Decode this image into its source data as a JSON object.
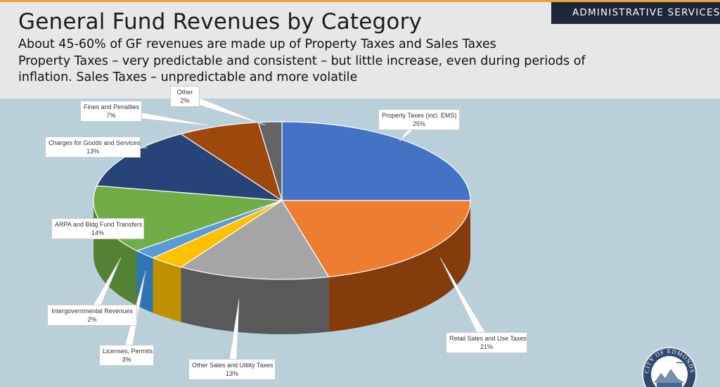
{
  "header": {
    "title": "General Fund Revenues by Category",
    "line1": "About 45-60% of GF revenues are made up of Property Taxes and Sales Taxes",
    "line2": "Property Taxes – very predictable and consistent – but little increase, even during periods of",
    "line3": "inflation. Sales Taxes – unpredictable and more volatile",
    "department": "ADMINISTRATIVE SERVICES"
  },
  "logo": {
    "icon": "city-of-edmonds-seal-icon",
    "text": "CITY OF EDMONDS"
  },
  "chart_data": {
    "type": "pie",
    "style": "3d",
    "start": "top, clockwise",
    "slices": [
      {
        "label": "Property Taxes (incl. EMS)",
        "value": 25,
        "value_label": "25%",
        "color": "#4472c4",
        "side_color": "#2f5597"
      },
      {
        "label": "Retail Sales and Use Taxes",
        "value": 21,
        "value_label": "21%",
        "color": "#ed7d31",
        "side_color": "#843c0c"
      },
      {
        "label": "Other Sales and Utility Taxes",
        "value": 13,
        "value_label": "13%",
        "color": "#a5a5a5",
        "side_color": "#595959"
      },
      {
        "label": "Licenses, Permits",
        "value": 3,
        "value_label": "3%",
        "color": "#ffc000",
        "side_color": "#bf9000"
      },
      {
        "label": "Intergovernmental Revenues",
        "value": 2,
        "value_label": "2%",
        "color": "#5b9bd5",
        "side_color": "#2e75b6"
      },
      {
        "label": "ARPA and Bldg Fund Transfers",
        "value": 14,
        "value_label": "14%",
        "color": "#70ad47",
        "side_color": "#548235"
      },
      {
        "label": "Charges for Goods and Services",
        "value": 13,
        "value_label": "13%",
        "color": "#264478",
        "side_color": "#1a2f54"
      },
      {
        "label": "Fines and Penalties",
        "value": 7,
        "value_label": "7%",
        "color": "#9e480e",
        "side_color": "#6b300a"
      },
      {
        "label": "Other",
        "value": 2,
        "value_label": "2%",
        "color": "#636363",
        "side_color": "#404040"
      }
    ]
  }
}
